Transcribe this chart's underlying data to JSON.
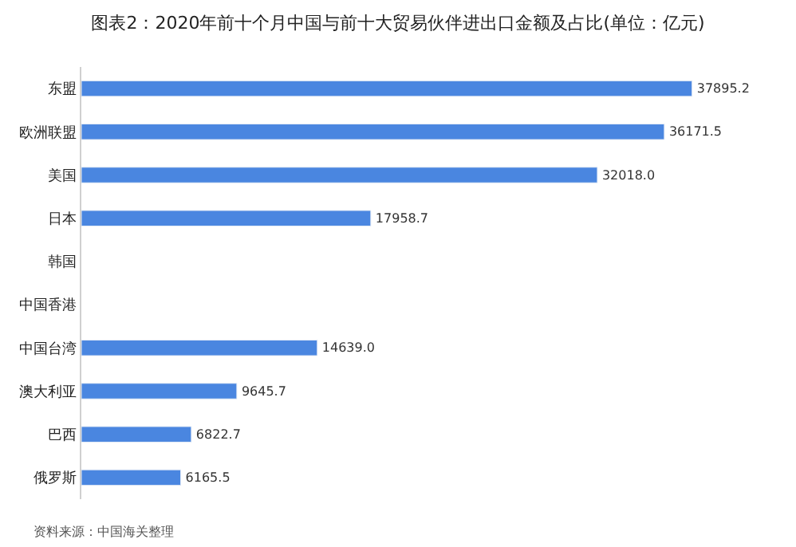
{
  "chart_data": {
    "type": "bar",
    "orientation": "horizontal",
    "title": "图表2：2020年前十个月中国与前十大贸易伙伴进出口金额及占比(单位：亿元)",
    "categories": [
      "东盟",
      "欧洲联盟",
      "美国",
      "日本",
      "韩国",
      "中国香港",
      "中国台湾",
      "澳大利亚",
      "巴西",
      "俄罗斯"
    ],
    "values": [
      37895.2,
      36171.5,
      32018.0,
      17958.7,
      null,
      null,
      14639.0,
      9645.7,
      6822.7,
      6165.5
    ],
    "value_labels": [
      "37895.2",
      "36171.5",
      "32018.0",
      "17958.7",
      null,
      null,
      "14639.0",
      "9645.7",
      "6822.7",
      "6165.5"
    ],
    "color": "#4a86e0",
    "tick_labels": "y",
    "annotations": [
      "资料来源：中国海关整理"
    ]
  }
}
